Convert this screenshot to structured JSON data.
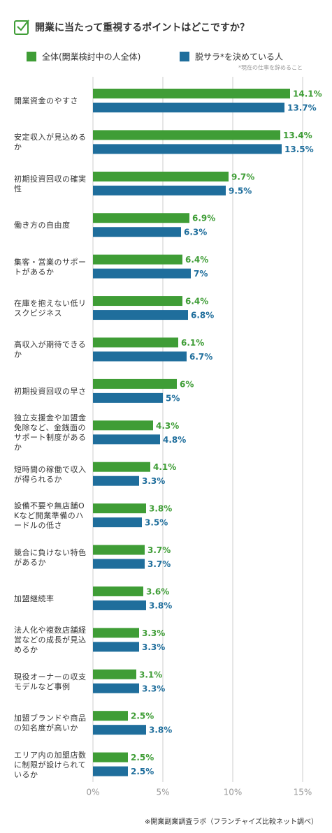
{
  "chart_data": {
    "type": "bar",
    "orientation": "horizontal",
    "title": "開業に当たって重視するポイントはどこですか？",
    "note": "*現在の仕事を辞めること",
    "source": "※開業副業調査ラボ（フランチャイズ比較ネット調べ）",
    "categories": [
      "開業資金のやすさ",
      "安定収入が見込めるか",
      "初期投資回収の確実性",
      "働き方の自由度",
      "集客・営業のサポートがあるか",
      "在庫を抱えない低リスクビジネス",
      "高収入が期待できるか",
      "初期投資回収の早さ",
      "独立支援金や加盟金免除など、金銭面のサポート制度があるか",
      "短時間の稼働で収入が得られるか",
      "設備不要や無店舗OKなど開業準備のハードルの低さ",
      "競合に負けない特色があるか",
      "加盟継続率",
      "法人化や複数店舗経営などの成長が見込めるか",
      "現役オーナーの収支モデルなど事例",
      "加盟ブランドや商品の知名度が高いか",
      "エリア内の加盟店数に制限が設けられているか"
    ],
    "series": [
      {
        "name": "全体(開業検討中の人全体)",
        "color": "#3f9d36",
        "values": [
          14.1,
          13.4,
          9.7,
          6.9,
          6.4,
          6.4,
          6.1,
          6,
          4.3,
          4.1,
          3.8,
          3.7,
          3.6,
          3.3,
          3.1,
          2.5,
          2.5
        ],
        "value_labels": [
          "14.1%",
          "13.4%",
          "9.7%",
          "6.9%",
          "6.4%",
          "6.4%",
          "6.1%",
          "6%",
          "4.3%",
          "4.1%",
          "3.8%",
          "3.7%",
          "3.6%",
          "3.3%",
          "3.1%",
          "2.5%",
          "2.5%"
        ]
      },
      {
        "name": "脱サラ*を決めている人",
        "color": "#1f6e9c",
        "values": [
          13.7,
          13.5,
          9.5,
          6.3,
          7,
          6.8,
          6.7,
          5,
          4.8,
          3.3,
          3.5,
          3.7,
          3.8,
          3.3,
          3.3,
          3.8,
          2.5
        ],
        "value_labels": [
          "13.7%",
          "13.5%",
          "9.5%",
          "6.3%",
          "7%",
          "6.8%",
          "6.7%",
          "5%",
          "4.8%",
          "3.3%",
          "3.5%",
          "3.7%",
          "3.8%",
          "3.3%",
          "3.3%",
          "3.8%",
          "2.5%"
        ]
      }
    ],
    "xlim": [
      0,
      15
    ],
    "xticks": [
      {
        "value": 0,
        "label": "0%"
      },
      {
        "value": 5,
        "label": "5%"
      },
      {
        "value": 10,
        "label": "10%"
      },
      {
        "value": 15,
        "label": "15%"
      }
    ],
    "grid": true
  }
}
